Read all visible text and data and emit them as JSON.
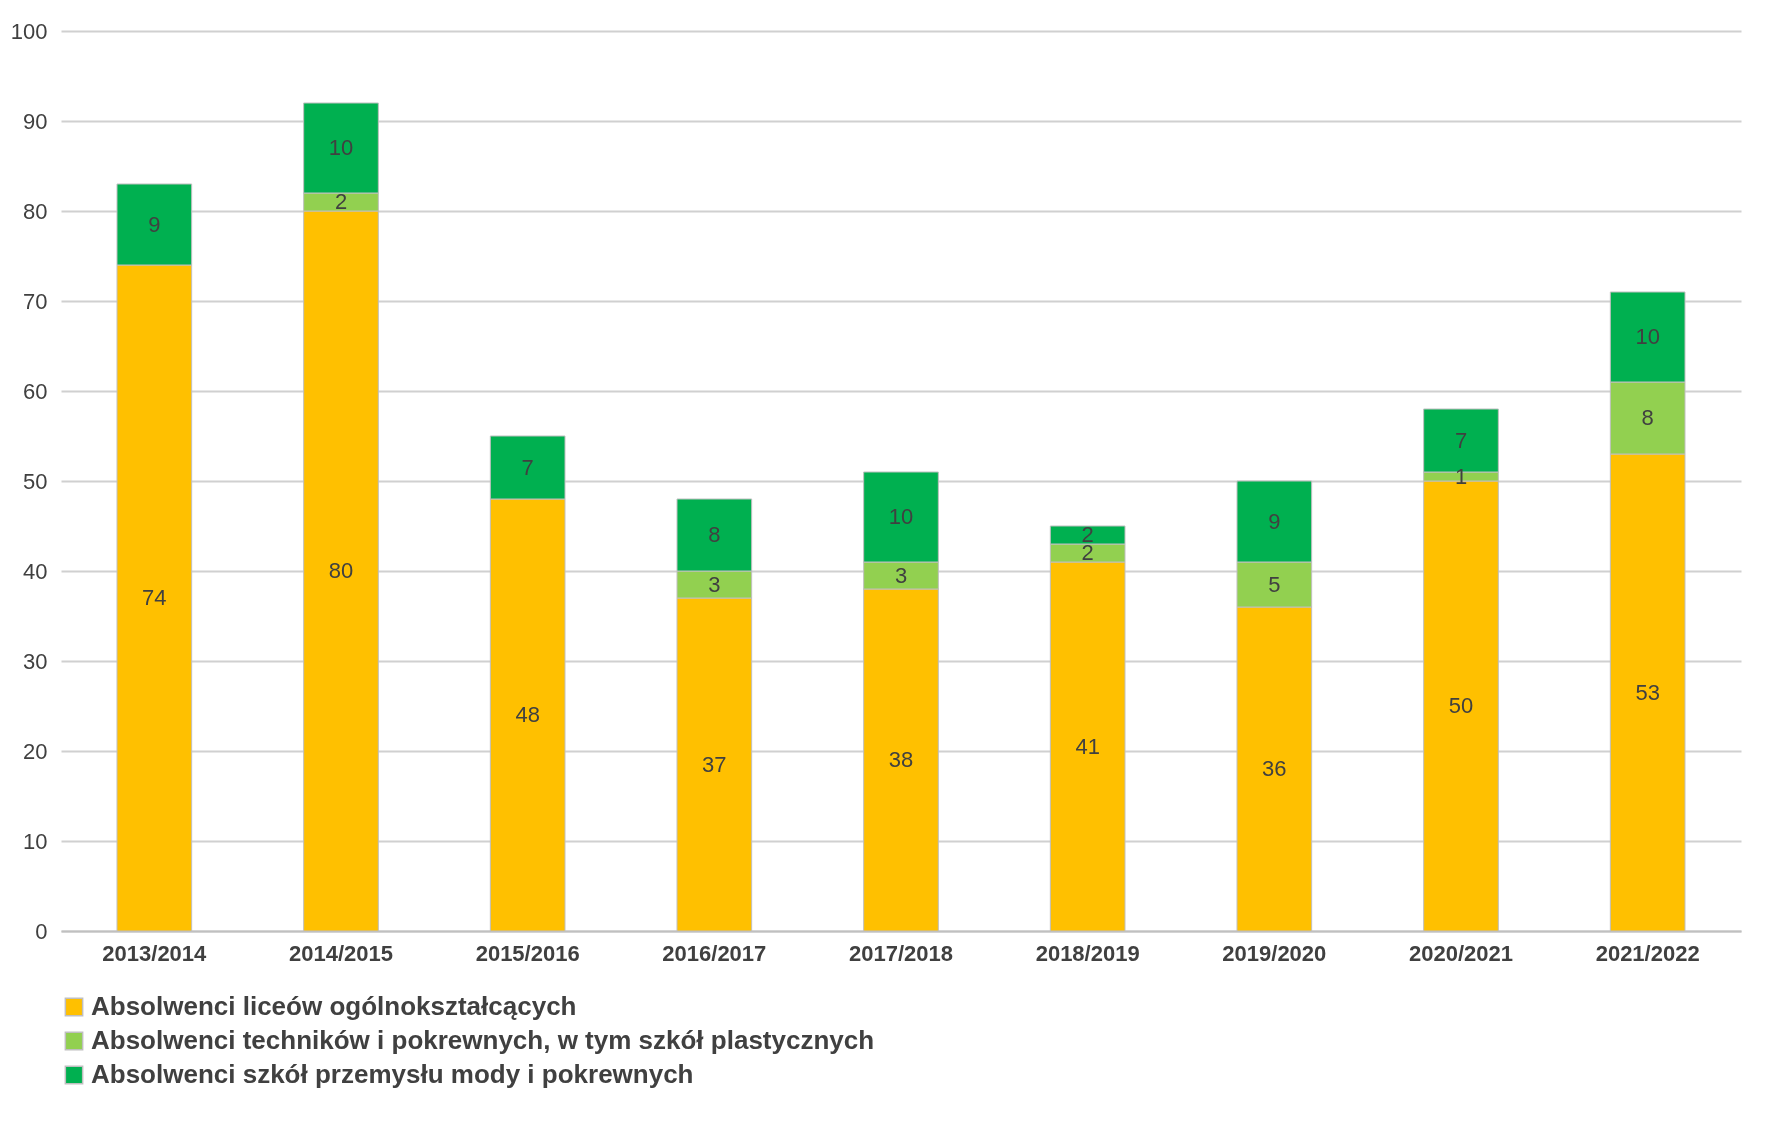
{
  "chart_data": {
    "type": "bar",
    "stacked": true,
    "categories": [
      "2013/2014",
      "2014/2015",
      "2015/2016",
      "2016/2017",
      "2017/2018",
      "2018/2019",
      "2019/2020",
      "2020/2021",
      "2021/2022"
    ],
    "series": [
      {
        "name": "Absolwenci liceów ogólnokształcących",
        "color": "#ffc000",
        "values": [
          74,
          80,
          48,
          37,
          38,
          41,
          36,
          50,
          53
        ]
      },
      {
        "name": "Absolwenci techników i pokrewnych, w tym szkół plastycznych",
        "color": "#92d050",
        "values": [
          null,
          2,
          null,
          3,
          3,
          2,
          5,
          1,
          8
        ]
      },
      {
        "name": "Absolwenci szkół przemysłu mody i pokrewnych",
        "color": "#00b050",
        "values": [
          9,
          10,
          7,
          8,
          10,
          2,
          9,
          7,
          10
        ]
      }
    ],
    "ylim": [
      0,
      100
    ],
    "yticks": [
      0,
      10,
      20,
      30,
      40,
      50,
      60,
      70,
      80,
      90,
      100
    ],
    "grid": "y",
    "legend": "bottom",
    "data_labels": true
  }
}
